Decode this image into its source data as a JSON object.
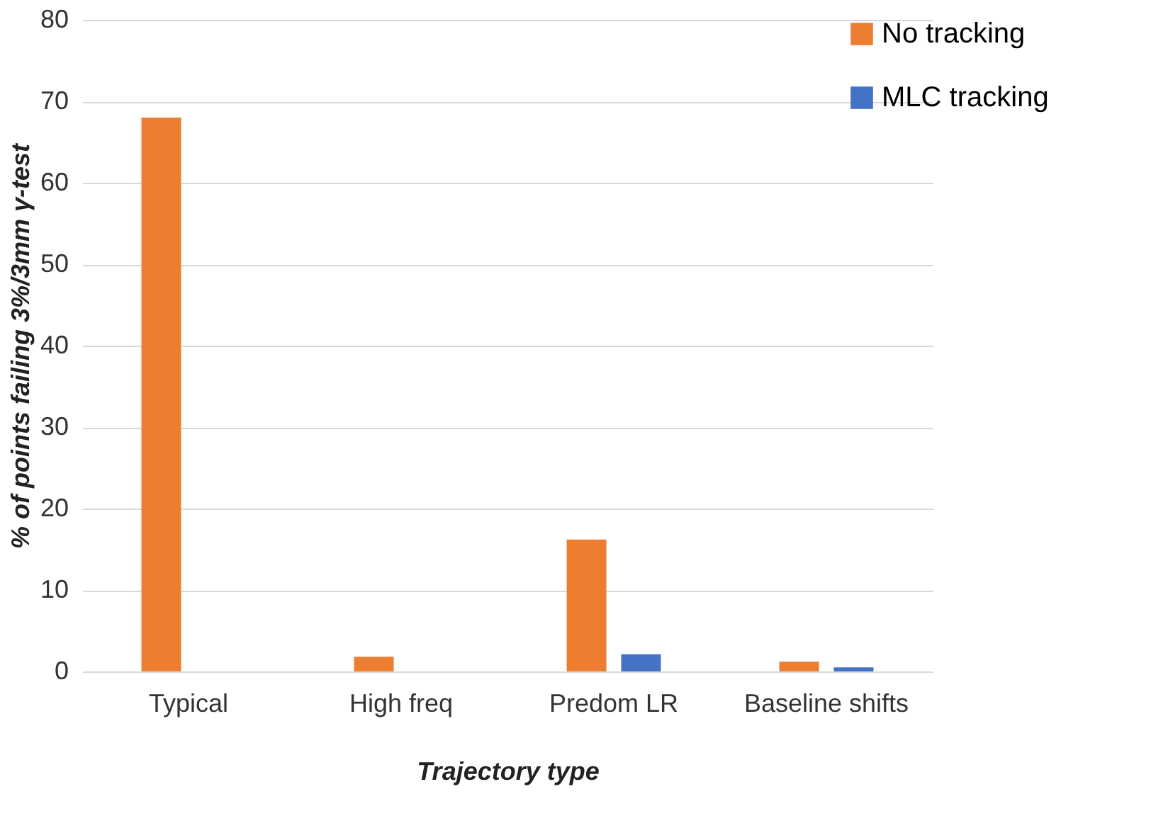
{
  "chart_data": {
    "type": "bar",
    "xlabel": "Trajectory type",
    "ylabel": "% of points failing 3%/3mm γ-test",
    "categories": [
      "Typical",
      "High freq",
      "Predom LR",
      "Baseline shifts"
    ],
    "series": [
      {
        "name": "No tracking",
        "color": "#ed7d31",
        "values": [
          68,
          1.8,
          16.2,
          1.2
        ]
      },
      {
        "name": "MLC tracking",
        "color": "#4472c4",
        "values": [
          0,
          0,
          2.1,
          0.5
        ]
      }
    ],
    "ylim": [
      0,
      80
    ],
    "yticks": [
      0,
      10,
      20,
      30,
      40,
      50,
      60,
      70,
      80
    ],
    "grid": "y",
    "legend": "right"
  }
}
